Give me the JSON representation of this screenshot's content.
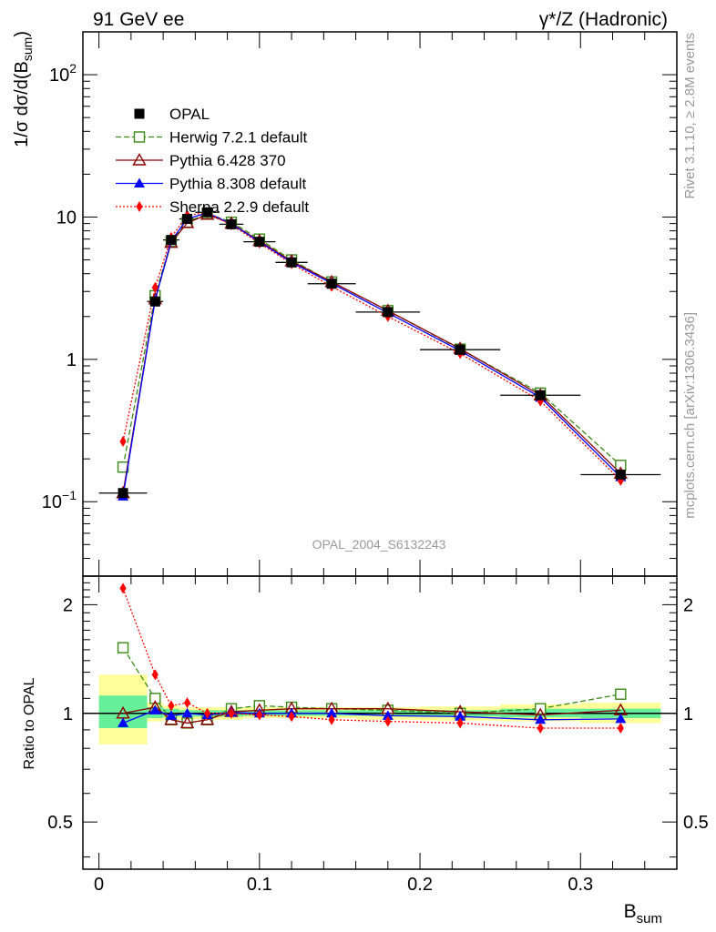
{
  "header": {
    "left_title": "91 GeV ee",
    "right_title": "γ*/Z (Hadronic)"
  },
  "side_text": {
    "rivet": "Rivet 3.1.10, ≥ 2.8M events",
    "mcplots": "mcplots.cern.ch [arXiv:1306.3436]"
  },
  "watermark": "OPAL_2004_S6132243",
  "colors": {
    "opal": "#000000",
    "herwig": "#3a8a14",
    "pythia6": "#8b0000",
    "pythia8": "#0000ff",
    "sherpa": "#ff0000",
    "band_inner": "#66ee99",
    "band_outer": "#ffff99"
  },
  "chart_data": [
    {
      "id": "main",
      "type": "line",
      "yscale": "log",
      "ylabel_main": "1/σ dσ/d(B",
      "ylabel_sub": "sum",
      "ylabel_close": ")",
      "xlim": [
        -0.01,
        0.36
      ],
      "ylim": [
        0.03,
        200
      ],
      "yticks": [
        {
          "value": 100,
          "base": "10",
          "exp": "2"
        },
        {
          "value": 10,
          "base": "10",
          "exp": ""
        },
        {
          "value": 1,
          "base": "1",
          "exp": ""
        },
        {
          "value": 0.1,
          "base": "10",
          "exp": "−1"
        }
      ],
      "legend_position": "top-left",
      "x": [
        0.015,
        0.035,
        0.045,
        0.055,
        0.0675,
        0.0825,
        0.1,
        0.12,
        0.145,
        0.18,
        0.225,
        0.275,
        0.325
      ],
      "x_width": [
        0.03,
        0.01,
        0.01,
        0.01,
        0.015,
        0.015,
        0.02,
        0.02,
        0.03,
        0.04,
        0.05,
        0.05,
        0.05
      ],
      "series": [
        {
          "name": "OPAL",
          "key": "opal",
          "marker": "square-filled",
          "line": "none",
          "values": [
            0.115,
            2.55,
            6.9,
            9.7,
            10.8,
            8.9,
            6.7,
            4.8,
            3.4,
            2.15,
            1.17,
            0.56,
            0.155
          ]
        },
        {
          "name": "Herwig 7.2.1 default",
          "key": "herwig",
          "marker": "square-open",
          "line": "dashed",
          "values": [
            0.175,
            2.8,
            6.75,
            9.2,
            10.6,
            9.2,
            7.0,
            5.0,
            3.5,
            2.2,
            1.18,
            0.58,
            0.18
          ]
        },
        {
          "name": "Pythia 6.428 370",
          "key": "pythia6",
          "marker": "triangle-open",
          "line": "solid",
          "values": [
            0.115,
            2.65,
            6.6,
            9.1,
            10.4,
            9.0,
            6.8,
            4.9,
            3.5,
            2.2,
            1.19,
            0.56,
            0.158
          ]
        },
        {
          "name": "Pythia 8.308 default",
          "key": "pythia8",
          "marker": "triangle-filled",
          "line": "solid",
          "values": [
            0.109,
            2.6,
            6.8,
            9.7,
            10.7,
            8.95,
            6.7,
            4.8,
            3.42,
            2.12,
            1.15,
            0.54,
            0.149
          ]
        },
        {
          "name": "Sherpa 2.2.9 default",
          "key": "sherpa",
          "marker": "diamond-filled",
          "line": "dotted",
          "values": [
            0.265,
            3.2,
            7.2,
            10.3,
            10.7,
            8.8,
            6.55,
            4.7,
            3.25,
            2.0,
            1.1,
            0.51,
            0.141
          ]
        }
      ]
    },
    {
      "id": "ratio",
      "type": "line",
      "yscale": "log",
      "ylabel": "Ratio to OPAL",
      "xlabel_main": "B",
      "xlabel_sub": "sum",
      "xlim": [
        -0.01,
        0.36
      ],
      "ylim": [
        0.37,
        2.4
      ],
      "xticks": [
        {
          "value": 0,
          "label": "0"
        },
        {
          "value": 0.1,
          "label": "0.1"
        },
        {
          "value": 0.2,
          "label": "0.2"
        },
        {
          "value": 0.3,
          "label": "0.3"
        }
      ],
      "yticks": [
        {
          "value": 2,
          "label": "2"
        },
        {
          "value": 1,
          "label": "1"
        },
        {
          "value": 0.5,
          "label": "0.5"
        }
      ],
      "bands": [
        {
          "x0": 0.0,
          "x1": 0.03,
          "inner": [
            0.91,
            1.12
          ],
          "outer": [
            0.82,
            1.28
          ]
        },
        {
          "x0": 0.03,
          "x1": 0.04,
          "inner": [
            0.97,
            1.04
          ],
          "outer": [
            0.95,
            1.07
          ]
        },
        {
          "x0": 0.04,
          "x1": 0.05,
          "inner": [
            0.98,
            1.03
          ],
          "outer": [
            0.96,
            1.05
          ]
        },
        {
          "x0": 0.05,
          "x1": 0.06,
          "inner": [
            0.98,
            1.02
          ],
          "outer": [
            0.96,
            1.04
          ]
        },
        {
          "x0": 0.06,
          "x1": 0.075,
          "inner": [
            0.98,
            1.02
          ],
          "outer": [
            0.96,
            1.04
          ]
        },
        {
          "x0": 0.075,
          "x1": 0.09,
          "inner": [
            0.98,
            1.02
          ],
          "outer": [
            0.96,
            1.04
          ]
        },
        {
          "x0": 0.09,
          "x1": 0.11,
          "inner": [
            0.985,
            1.02
          ],
          "outer": [
            0.97,
            1.04
          ]
        },
        {
          "x0": 0.11,
          "x1": 0.13,
          "inner": [
            0.985,
            1.02
          ],
          "outer": [
            0.97,
            1.04
          ]
        },
        {
          "x0": 0.13,
          "x1": 0.16,
          "inner": [
            0.985,
            1.02
          ],
          "outer": [
            0.97,
            1.04
          ]
        },
        {
          "x0": 0.16,
          "x1": 0.2,
          "inner": [
            0.985,
            1.02
          ],
          "outer": [
            0.96,
            1.04
          ]
        },
        {
          "x0": 0.2,
          "x1": 0.25,
          "inner": [
            0.98,
            1.02
          ],
          "outer": [
            0.955,
            1.045
          ]
        },
        {
          "x0": 0.25,
          "x1": 0.3,
          "inner": [
            0.975,
            1.03
          ],
          "outer": [
            0.95,
            1.06
          ]
        },
        {
          "x0": 0.3,
          "x1": 0.35,
          "inner": [
            0.97,
            1.03
          ],
          "outer": [
            0.94,
            1.07
          ]
        }
      ],
      "series": [
        {
          "name": "Herwig 7.2.1 default",
          "key": "herwig",
          "marker": "square-open",
          "line": "dashed",
          "values": [
            1.52,
            1.1,
            0.96,
            0.94,
            0.96,
            1.03,
            1.05,
            1.04,
            1.03,
            1.02,
            1.0,
            1.03,
            1.13
          ]
        },
        {
          "name": "Pythia 6.428 370",
          "key": "pythia6",
          "marker": "triangle-open",
          "line": "solid",
          "values": [
            1.0,
            1.04,
            0.96,
            0.94,
            0.96,
            1.01,
            1.02,
            1.03,
            1.03,
            1.03,
            1.01,
            0.99,
            1.02
          ]
        },
        {
          "name": "Pythia 8.308 default",
          "key": "pythia8",
          "marker": "triangle-filled",
          "line": "solid",
          "values": [
            0.94,
            1.02,
            0.985,
            1.0,
            0.99,
            1.005,
            1.0,
            1.0,
            1.0,
            0.985,
            0.98,
            0.96,
            0.965
          ]
        },
        {
          "name": "Sherpa 2.2.9 default",
          "key": "sherpa",
          "marker": "diamond-filled",
          "line": "dotted",
          "values": [
            2.22,
            1.28,
            1.05,
            1.07,
            1.0,
            1.0,
            0.99,
            0.98,
            0.96,
            0.95,
            0.94,
            0.91,
            0.91
          ]
        }
      ]
    }
  ]
}
